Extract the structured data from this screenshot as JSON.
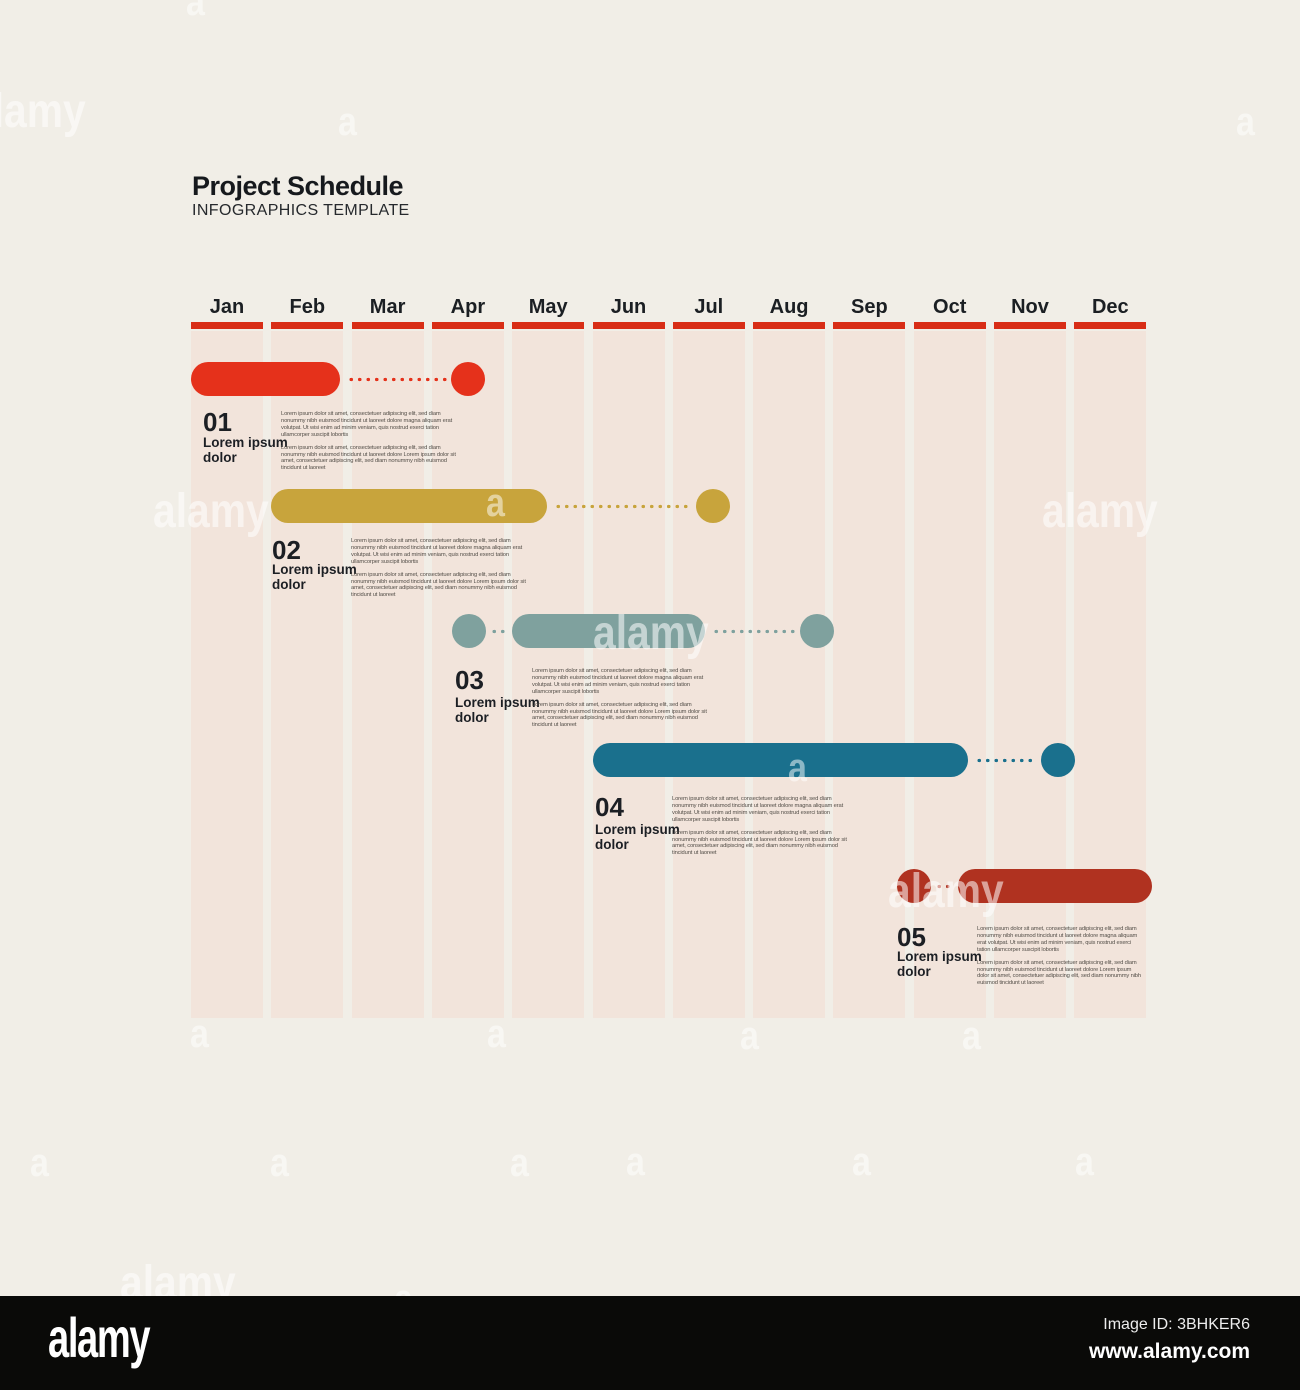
{
  "header": {
    "title": "Project Schedule",
    "subtitle": "INFOGRAPHICS TEMPLATE"
  },
  "colors": {
    "page_background": "#F1EEE7",
    "column_background": "#F2E4DB",
    "month_underline_red": "#D82D16",
    "task_colors": [
      "#E5311B",
      "#C8A43C",
      "#7FA19E",
      "#1A708D",
      "#B03220"
    ],
    "heading_text": "#16191D",
    "body_text": "#55504A"
  },
  "chart_data": {
    "type": "gantt",
    "title": "Project Schedule",
    "categories": [
      "Jan",
      "Feb",
      "Mar",
      "Apr",
      "May",
      "Jun",
      "Jul",
      "Aug",
      "Sep",
      "Oct",
      "Nov",
      "Dec"
    ],
    "x_axis": {
      "unit": "month",
      "range": [
        0,
        12
      ],
      "gridlines": "column-bands"
    },
    "legend": "none",
    "tasks": [
      {
        "id": "01",
        "label": "Lorem ipsum dolor",
        "color": "#E5311B",
        "bar_start": 0.0,
        "bar_end": 1.85,
        "milestone": 3.45,
        "pre_milestone": null,
        "para1": "Lorem ipsum dolor sit amet, consectetuer adipiscing elit, sed diam nonummy nibh euismod tincidunt ut laoreet dolore magna aliquam erat volutpat. Ut wisi enim ad minim veniam, quis nostrud exerci tation ullamcorper suscipit lobortis",
        "para2": "Lorem ipsum dolor sit amet, consectetuer adipiscing elit, sed diam nonummy nibh euismod tincidunt ut laoreet dolore Lorem ipsum dolor sit amet, consectetuer adipiscing elit, sed diam nonummy nibh euismod tincidunt ut laoreet"
      },
      {
        "id": "02",
        "label": "Lorem ipsum dolor",
        "color": "#C8A43C",
        "bar_start": 1.0,
        "bar_end": 4.43,
        "milestone": 6.5,
        "pre_milestone": null,
        "para1": "Lorem ipsum dolor sit amet, consectetuer adipiscing elit, sed diam nonummy nibh euismod tincidunt ut laoreet dolore magna aliquam erat volutpat. Ut wisi enim ad minim veniam, quis nostrud exerci tation ullamcorper suscipit lobortis",
        "para2": "Lorem ipsum dolor sit amet, consectetuer adipiscing elit, sed diam nonummy nibh euismod tincidunt ut laoreet dolore Lorem ipsum dolor sit amet, consectetuer adipiscing elit, sed diam nonummy nibh euismod tincidunt ut laoreet"
      },
      {
        "id": "03",
        "label": "Lorem ipsum dolor",
        "color": "#7FA19E",
        "bar_start": 4.0,
        "bar_end": 6.4,
        "milestone": 7.8,
        "pre_milestone": 3.46,
        "para1": "Lorem ipsum dolor sit amet, consectetuer adipiscing elit, sed diam nonummy nibh euismod tincidunt ut laoreet dolore magna aliquam erat volutpat. Ut wisi enim ad minim veniam, quis nostrud exerci tation ullamcorper suscipit lobortis",
        "para2": "Lorem ipsum dolor sit amet, consectetuer adipiscing elit, sed diam nonummy nibh euismod tincidunt ut laoreet dolore Lorem ipsum dolor sit amet, consectetuer adipiscing elit, sed diam nonummy nibh euismod tincidunt ut laoreet"
      },
      {
        "id": "04",
        "label": "Lorem ipsum dolor",
        "color": "#1A708D",
        "bar_start": 5.0,
        "bar_end": 9.68,
        "milestone": 10.8,
        "pre_milestone": null,
        "para1": "Lorem ipsum dolor sit amet, consectetuer adipiscing elit, sed diam nonummy nibh euismod tincidunt ut laoreet dolore magna aliquam erat volutpat. Ut wisi enim ad minim veniam, quis nostrud exerci tation ullamcorper suscipit lobortis",
        "para2": "Lorem ipsum dolor sit amet, consectetuer adipiscing elit, sed diam nonummy nibh euismod tincidunt ut laoreet dolore Lorem ipsum dolor sit amet, consectetuer adipiscing elit, sed diam nonummy nibh euismod tincidunt ut laoreet"
      },
      {
        "id": "05",
        "label": "Lorem ipsum dolor",
        "color": "#B03220",
        "bar_start": 9.55,
        "bar_end": 11.97,
        "milestone": null,
        "pre_milestone": 9.0,
        "para1": "Lorem ipsum dolor sit amet, consectetuer adipiscing elit, sed diam nonummy nibh euismod tincidunt ut laoreet dolore magna aliquam erat volutpat. Ut wisi enim ad minim veniam, quis nostrud exerci tation ullamcorper suscipit lobortis",
        "para2": "Lorem ipsum dolor sit amet, consectetuer adipiscing elit, sed diam nonummy nibh euismod tincidunt ut laoreet dolore Lorem ipsum dolor sit amet, consectetuer adipiscing elit, sed diam nonummy nibh euismod tincidunt ut laoreet"
      }
    ]
  },
  "watermark": {
    "word": "alamy",
    "letter": "a"
  },
  "footer": {
    "logo": "alamy",
    "image_id": "Image ID: 3BHKER6",
    "url": "www.alamy.com"
  }
}
